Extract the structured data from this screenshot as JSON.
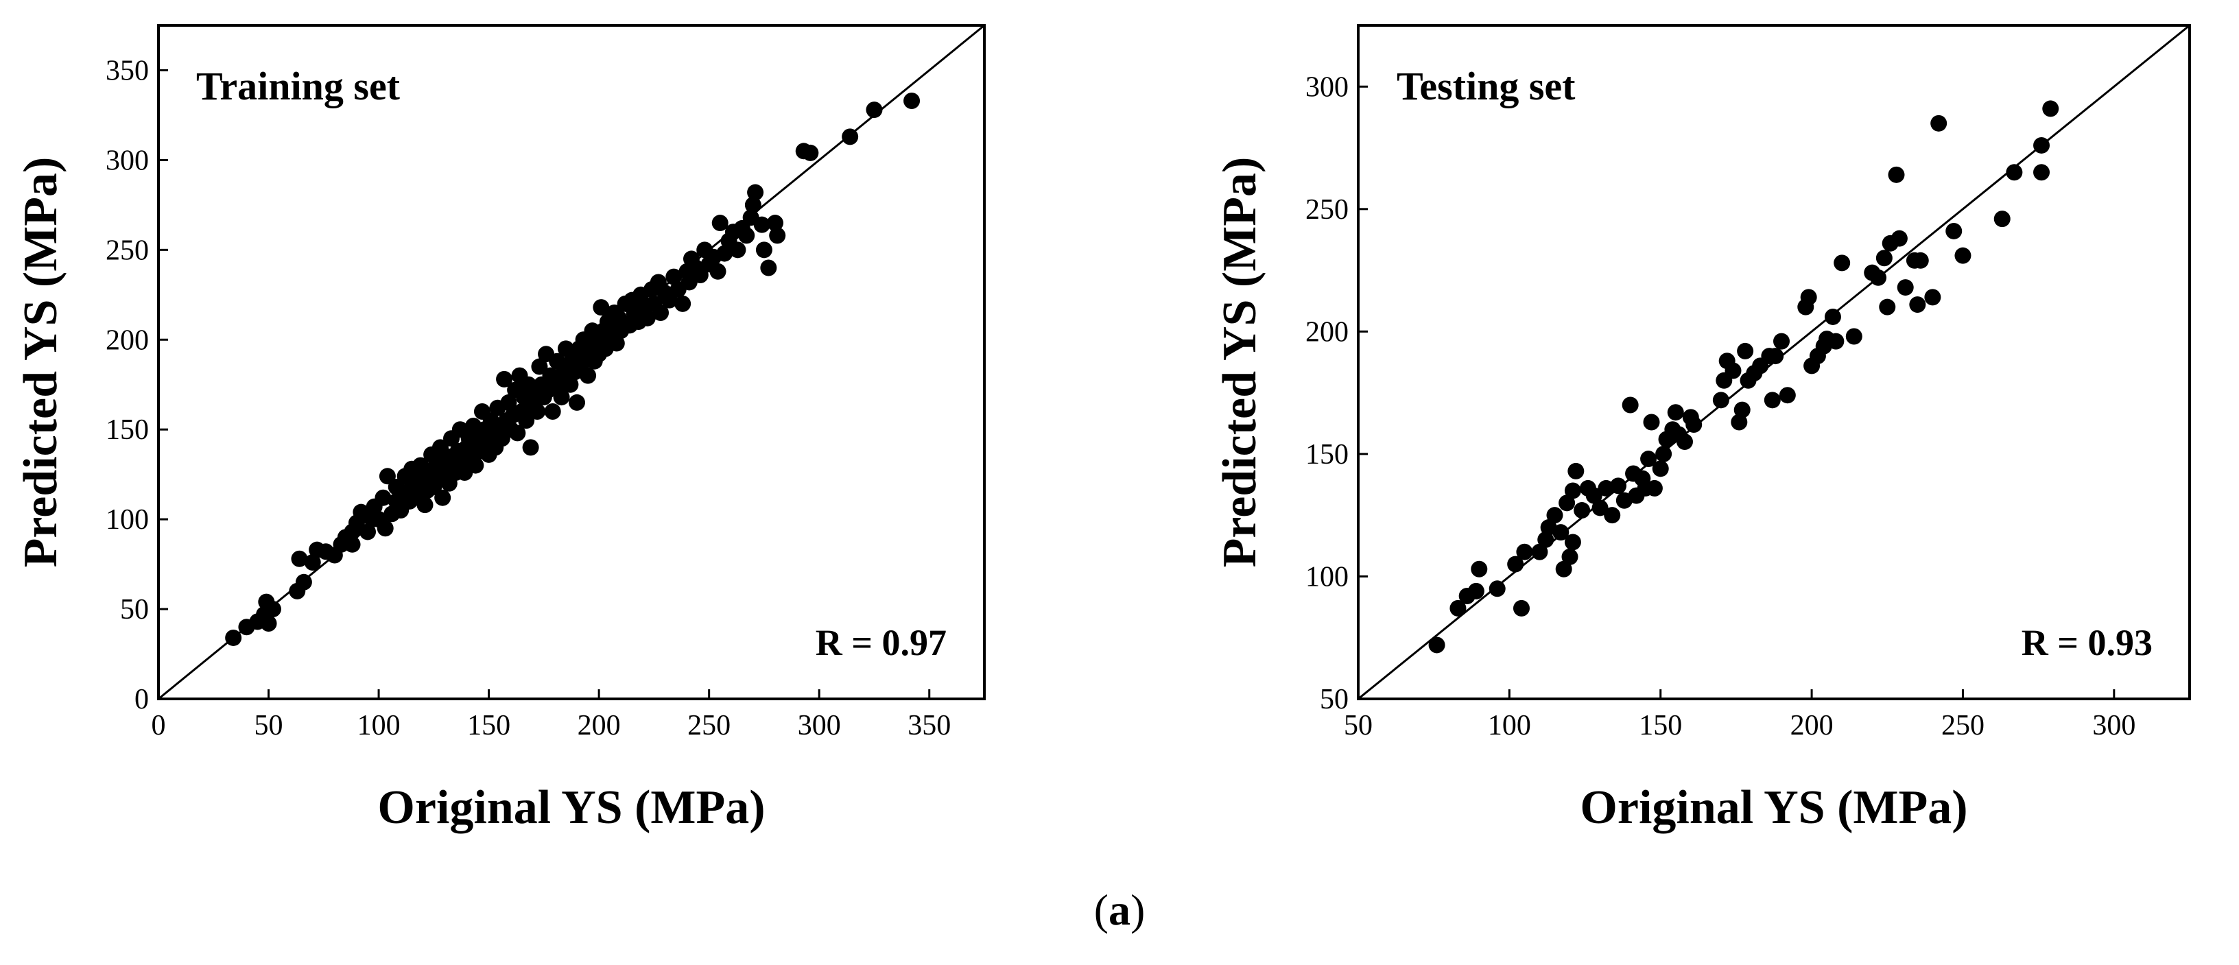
{
  "chart_data": [
    {
      "type": "scatter",
      "title": "Training set",
      "xlabel": "Original YS (MPa)",
      "ylabel": "Predicted YS (MPa)",
      "xlim": [
        0,
        375
      ],
      "ylim": [
        0,
        375
      ],
      "xticks": [
        0,
        50,
        100,
        150,
        200,
        250,
        300,
        350
      ],
      "yticks": [
        0,
        50,
        100,
        150,
        200,
        250,
        300,
        350
      ],
      "annotation": "R = 0.97",
      "reference_line": "y = x",
      "points": [
        [
          34,
          34
        ],
        [
          40,
          40
        ],
        [
          45,
          43
        ],
        [
          48,
          47
        ],
        [
          49,
          54
        ],
        [
          50,
          42
        ],
        [
          52,
          50
        ],
        [
          63,
          60
        ],
        [
          64,
          78
        ],
        [
          66,
          65
        ],
        [
          70,
          76
        ],
        [
          72,
          83
        ],
        [
          76,
          82
        ],
        [
          80,
          80
        ],
        [
          83,
          86
        ],
        [
          85,
          90
        ],
        [
          88,
          93
        ],
        [
          88,
          86
        ],
        [
          90,
          98
        ],
        [
          92,
          104
        ],
        [
          95,
          93
        ],
        [
          97,
          100
        ],
        [
          98,
          107
        ],
        [
          100,
          100
        ],
        [
          102,
          112
        ],
        [
          103,
          95
        ],
        [
          104,
          124
        ],
        [
          106,
          103
        ],
        [
          108,
          110
        ],
        [
          108,
          118
        ],
        [
          110,
          105
        ],
        [
          112,
          115
        ],
        [
          112,
          124
        ],
        [
          114,
          110
        ],
        [
          115,
          128
        ],
        [
          116,
          120
        ],
        [
          118,
          112
        ],
        [
          118,
          118
        ],
        [
          119,
          130
        ],
        [
          120,
          124
        ],
        [
          121,
          108
        ],
        [
          122,
          116
        ],
        [
          123,
          126
        ],
        [
          124,
          136
        ],
        [
          125,
          118
        ],
        [
          126,
          130
        ],
        [
          127,
          122
        ],
        [
          128,
          140
        ],
        [
          129,
          112
        ],
        [
          130,
          128
        ],
        [
          131,
          135
        ],
        [
          132,
          120
        ],
        [
          133,
          145
        ],
        [
          134,
          130
        ],
        [
          135,
          126
        ],
        [
          136,
          138
        ],
        [
          137,
          150
        ],
        [
          138,
          132
        ],
        [
          139,
          126
        ],
        [
          140,
          140
        ],
        [
          141,
          145
        ],
        [
          142,
          135
        ],
        [
          143,
          152
        ],
        [
          144,
          130
        ],
        [
          145,
          144
        ],
        [
          146,
          138
        ],
        [
          147,
          160
        ],
        [
          148,
          150
        ],
        [
          149,
          142
        ],
        [
          150,
          136
        ],
        [
          151,
          155
        ],
        [
          152,
          148
        ],
        [
          153,
          140
        ],
        [
          154,
          162
        ],
        [
          155,
          150
        ],
        [
          156,
          145
        ],
        [
          157,
          178
        ],
        [
          158,
          155
        ],
        [
          159,
          165
        ],
        [
          160,
          150
        ],
        [
          161,
          158
        ],
        [
          162,
          172
        ],
        [
          163,
          148
        ],
        [
          164,
          180
        ],
        [
          165,
          160
        ],
        [
          166,
          168
        ],
        [
          167,
          155
        ],
        [
          168,
          175
        ],
        [
          169,
          140
        ],
        [
          170,
          165
        ],
        [
          171,
          170
        ],
        [
          172,
          160
        ],
        [
          173,
          185
        ],
        [
          174,
          175
        ],
        [
          175,
          168
        ],
        [
          176,
          192
        ],
        [
          177,
          172
        ],
        [
          178,
          180
        ],
        [
          179,
          160
        ],
        [
          180,
          178
        ],
        [
          181,
          188
        ],
        [
          182,
          175
        ],
        [
          183,
          168
        ],
        [
          184,
          185
        ],
        [
          185,
          195
        ],
        [
          186,
          180
        ],
        [
          187,
          175
        ],
        [
          188,
          190
        ],
        [
          189,
          182
        ],
        [
          190,
          165
        ],
        [
          191,
          195
        ],
        [
          192,
          186
        ],
        [
          193,
          200
        ],
        [
          194,
          190
        ],
        [
          195,
          180
        ],
        [
          196,
          196
        ],
        [
          197,
          205
        ],
        [
          198,
          188
        ],
        [
          199,
          200
        ],
        [
          200,
          192
        ],
        [
          201,
          218
        ],
        [
          202,
          205
        ],
        [
          203,
          195
        ],
        [
          204,
          210
        ],
        [
          205,
          200
        ],
        [
          206,
          208
        ],
        [
          207,
          215
        ],
        [
          208,
          198
        ],
        [
          209,
          212
        ],
        [
          210,
          205
        ],
        [
          212,
          220
        ],
        [
          214,
          208
        ],
        [
          215,
          222
        ],
        [
          216,
          215
        ],
        [
          218,
          210
        ],
        [
          219,
          225
        ],
        [
          220,
          218
        ],
        [
          222,
          212
        ],
        [
          224,
          228
        ],
        [
          225,
          220
        ],
        [
          227,
          232
        ],
        [
          228,
          215
        ],
        [
          230,
          226
        ],
        [
          232,
          222
        ],
        [
          234,
          235
        ],
        [
          236,
          228
        ],
        [
          238,
          220
        ],
        [
          240,
          238
        ],
        [
          241,
          232
        ],
        [
          242,
          245
        ],
        [
          244,
          240
        ],
        [
          246,
          236
        ],
        [
          248,
          250
        ],
        [
          250,
          242
        ],
        [
          252,
          246
        ],
        [
          254,
          238
        ],
        [
          255,
          265
        ],
        [
          257,
          248
        ],
        [
          259,
          255
        ],
        [
          261,
          260
        ],
        [
          263,
          250
        ],
        [
          265,
          262
        ],
        [
          267,
          258
        ],
        [
          269,
          268
        ],
        [
          270,
          275
        ],
        [
          271,
          282
        ],
        [
          274,
          264
        ],
        [
          275,
          250
        ],
        [
          277,
          240
        ],
        [
          280,
          265
        ],
        [
          281,
          258
        ],
        [
          293,
          305
        ],
        [
          296,
          304
        ],
        [
          314,
          313
        ],
        [
          325,
          328
        ],
        [
          342,
          333
        ]
      ]
    },
    {
      "type": "scatter",
      "title": "Testing set",
      "xlabel": "Original YS (MPa)",
      "ylabel": "Predicted YS (MPa)",
      "xlim": [
        50,
        325
      ],
      "ylim": [
        50,
        325
      ],
      "xticks": [
        50,
        100,
        150,
        200,
        250,
        300
      ],
      "yticks": [
        50,
        100,
        150,
        200,
        250,
        300
      ],
      "annotation": "R = 0.93",
      "reference_line": "y = x",
      "points": [
        [
          76,
          72
        ],
        [
          83,
          87
        ],
        [
          86,
          92
        ],
        [
          89,
          94
        ],
        [
          90,
          103
        ],
        [
          96,
          95
        ],
        [
          102,
          105
        ],
        [
          104,
          87
        ],
        [
          105,
          110
        ],
        [
          110,
          110
        ],
        [
          112,
          115
        ],
        [
          113,
          120
        ],
        [
          115,
          125
        ],
        [
          117,
          118
        ],
        [
          118,
          103
        ],
        [
          119,
          130
        ],
        [
          120,
          108
        ],
        [
          121,
          114
        ],
        [
          121,
          135
        ],
        [
          122,
          143
        ],
        [
          124,
          127
        ],
        [
          126,
          136
        ],
        [
          128,
          133
        ],
        [
          130,
          128
        ],
        [
          132,
          136
        ],
        [
          134,
          125
        ],
        [
          136,
          137
        ],
        [
          138,
          131
        ],
        [
          140,
          170
        ],
        [
          141,
          142
        ],
        [
          142,
          133
        ],
        [
          144,
          140
        ],
        [
          145,
          136
        ],
        [
          146,
          148
        ],
        [
          147,
          163
        ],
        [
          148,
          136
        ],
        [
          150,
          144
        ],
        [
          151,
          150
        ],
        [
          152,
          156
        ],
        [
          154,
          160
        ],
        [
          155,
          167
        ],
        [
          156,
          158
        ],
        [
          158,
          155
        ],
        [
          160,
          165
        ],
        [
          161,
          162
        ],
        [
          170,
          172
        ],
        [
          171,
          180
        ],
        [
          172,
          188
        ],
        [
          174,
          184
        ],
        [
          176,
          163
        ],
        [
          177,
          168
        ],
        [
          178,
          192
        ],
        [
          179,
          180
        ],
        [
          181,
          183
        ],
        [
          183,
          186
        ],
        [
          186,
          190
        ],
        [
          187,
          172
        ],
        [
          188,
          190
        ],
        [
          190,
          196
        ],
        [
          192,
          174
        ],
        [
          198,
          210
        ],
        [
          199,
          214
        ],
        [
          200,
          186
        ],
        [
          202,
          190
        ],
        [
          204,
          194
        ],
        [
          205,
          197
        ],
        [
          207,
          206
        ],
        [
          208,
          196
        ],
        [
          210,
          228
        ],
        [
          214,
          198
        ],
        [
          220,
          224
        ],
        [
          222,
          222
        ],
        [
          224,
          230
        ],
        [
          225,
          210
        ],
        [
          226,
          236
        ],
        [
          228,
          264
        ],
        [
          229,
          238
        ],
        [
          231,
          218
        ],
        [
          234,
          229
        ],
        [
          235,
          211
        ],
        [
          236,
          229
        ],
        [
          240,
          214
        ],
        [
          242,
          285
        ],
        [
          247,
          241
        ],
        [
          250,
          231
        ],
        [
          263,
          246
        ],
        [
          267,
          265
        ],
        [
          276,
          265
        ],
        [
          276,
          276
        ],
        [
          279,
          291
        ]
      ]
    }
  ],
  "caption": {
    "open": "(",
    "label": "a",
    "close": ")"
  }
}
